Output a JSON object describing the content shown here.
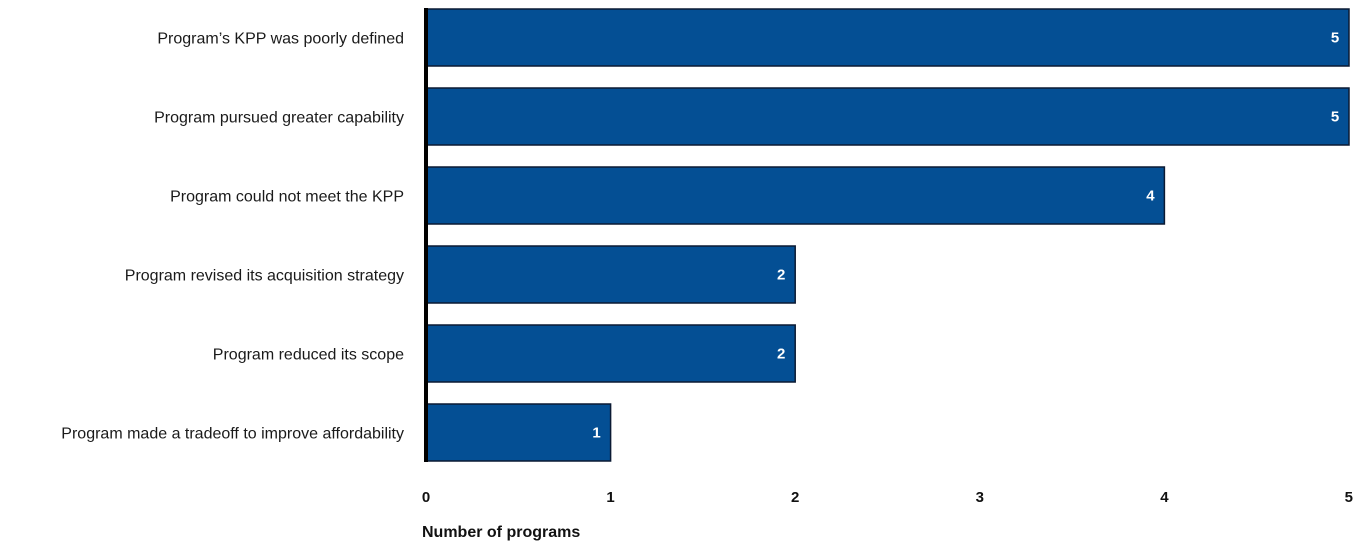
{
  "chart_data": {
    "type": "bar",
    "orientation": "horizontal",
    "categories": [
      "Program’s KPP was poorly defined",
      "Program pursued greater capability",
      "Program could not meet the KPP",
      "Program revised its acquisition strategy",
      "Program reduced its scope",
      "Program made a tradeoff to improve affordability"
    ],
    "values": [
      5,
      5,
      4,
      2,
      2,
      1
    ],
    "value_labels": [
      "5",
      "5",
      "4",
      "2",
      "2",
      "1"
    ],
    "title": "",
    "xlabel": "Number of programs",
    "ylabel": "",
    "xlim": [
      0,
      5
    ],
    "x_ticks": [
      "0",
      "1",
      "2",
      "3",
      "4",
      "5"
    ],
    "grid": false,
    "legend": "none",
    "colors": {
      "bar_fill": "#044f94",
      "bar_stroke": "#0b1a33",
      "axis_line": "#000000",
      "value_text": "#ffffff"
    }
  }
}
